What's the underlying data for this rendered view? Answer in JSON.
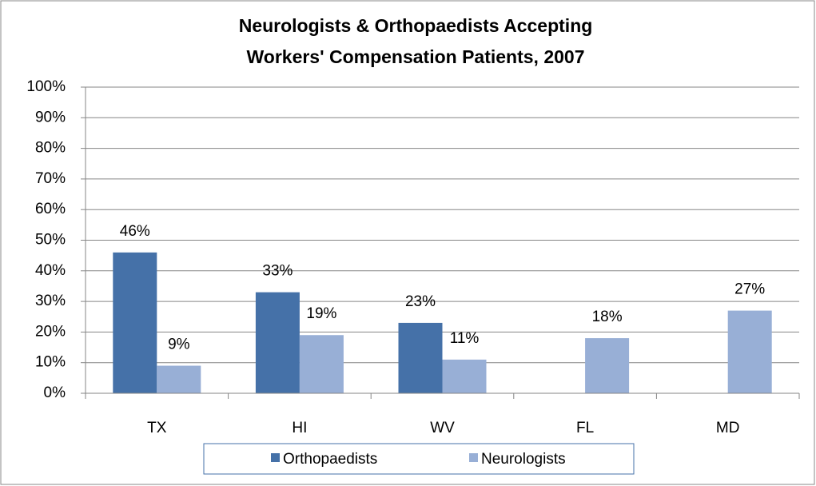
{
  "chart_data": {
    "type": "bar",
    "title": [
      "Neurologists & Orthopaedists Accepting",
      "Workers' Compensation Patients, 2007"
    ],
    "categories": [
      "TX",
      "HI",
      "WV",
      "FL",
      "MD"
    ],
    "series": [
      {
        "name": "Orthopaedists",
        "color": "#4571a8",
        "values": [
          46,
          33,
          23,
          null,
          null
        ],
        "value_labels": [
          "46%",
          "33%",
          "23%",
          null,
          null
        ]
      },
      {
        "name": "Neurologists",
        "color": "#98afd6",
        "values": [
          9,
          19,
          11,
          18,
          27
        ],
        "value_labels": [
          "9%",
          "19%",
          "11%",
          "18%",
          "27%"
        ]
      }
    ],
    "ylim": [
      0,
      100
    ],
    "yticks": [
      {
        "value": 0,
        "label": "0%"
      },
      {
        "value": 10,
        "label": "10%"
      },
      {
        "value": 20,
        "label": "20%"
      },
      {
        "value": 30,
        "label": "30%"
      },
      {
        "value": 40,
        "label": "40%"
      },
      {
        "value": 50,
        "label": "50%"
      },
      {
        "value": 60,
        "label": "60%"
      },
      {
        "value": 70,
        "label": "70%"
      },
      {
        "value": 80,
        "label": "80%"
      },
      {
        "value": 90,
        "label": "90%"
      },
      {
        "value": 100,
        "label": "100%"
      }
    ],
    "grid": true,
    "legend": "bottom"
  }
}
